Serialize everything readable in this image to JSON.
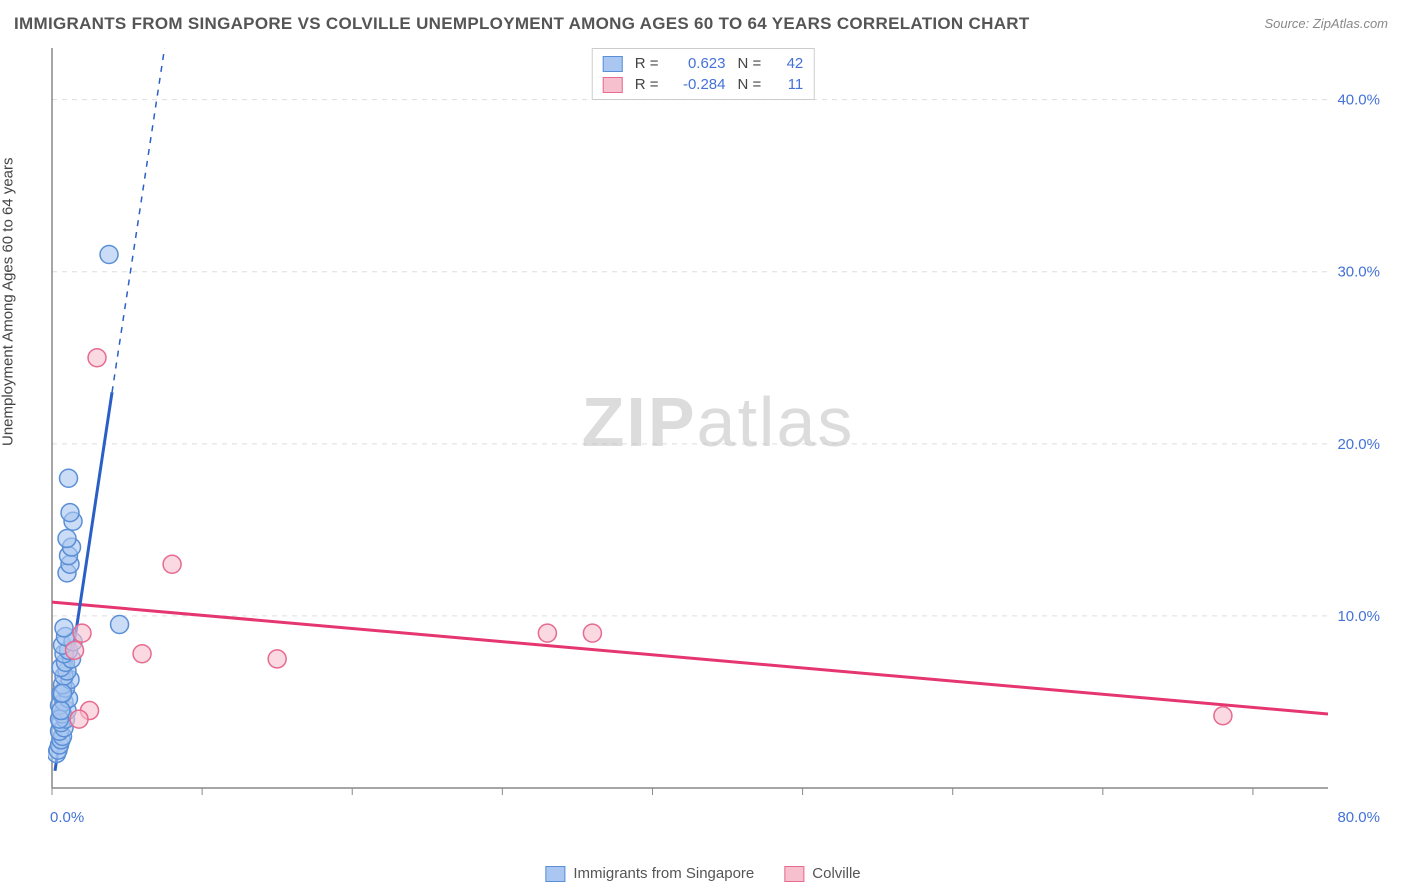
{
  "title": "IMMIGRANTS FROM SINGAPORE VS COLVILLE UNEMPLOYMENT AMONG AGES 60 TO 64 YEARS CORRELATION CHART",
  "source": "Source: ZipAtlas.com",
  "y_axis_label": "Unemployment Among Ages 60 to 64 years",
  "watermark": {
    "bold": "ZIP",
    "rest": "atlas"
  },
  "chart": {
    "type": "scatter",
    "background_color": "#ffffff",
    "grid_color": "#dddddd",
    "axis_color": "#888888",
    "x_range": [
      0,
      85
    ],
    "y_range": [
      0,
      43
    ],
    "x_ticks": [
      0,
      10,
      20,
      30,
      40,
      50,
      60,
      70,
      80
    ],
    "x_tick_labels_shown": {
      "0": "0.0%",
      "80": "80.0%"
    },
    "y_ticks": [
      10,
      20,
      30,
      40
    ],
    "y_tick_labels": {
      "10": "10.0%",
      "20": "20.0%",
      "30": "30.0%",
      "40": "40.0%"
    },
    "tick_label_color": "#4472d8",
    "tick_label_fontsize": 15
  },
  "series": [
    {
      "name": "Immigrants from Singapore",
      "color_fill": "#a9c7f0",
      "color_stroke": "#5a8fd6",
      "r_value": "0.623",
      "n_value": "42",
      "marker_radius": 9,
      "trend": {
        "x1": 0.2,
        "y1": 1.0,
        "x2": 4.0,
        "y2": 23.0,
        "dash_x2": 7.5,
        "dash_y2": 43.0,
        "color": "#2a5fc7",
        "width": 3
      },
      "points": [
        [
          0.3,
          2.0
        ],
        [
          0.4,
          2.2
        ],
        [
          0.5,
          2.5
        ],
        [
          0.6,
          2.8
        ],
        [
          0.7,
          3.0
        ],
        [
          0.5,
          3.3
        ],
        [
          0.8,
          3.5
        ],
        [
          0.6,
          3.8
        ],
        [
          0.9,
          4.0
        ],
        [
          0.7,
          4.3
        ],
        [
          1.0,
          4.5
        ],
        [
          0.5,
          4.8
        ],
        [
          0.8,
          5.0
        ],
        [
          1.1,
          5.2
        ],
        [
          0.6,
          5.5
        ],
        [
          0.9,
          5.8
        ],
        [
          0.7,
          6.0
        ],
        [
          1.2,
          6.3
        ],
        [
          0.8,
          6.5
        ],
        [
          1.0,
          6.8
        ],
        [
          0.6,
          7.0
        ],
        [
          0.9,
          7.3
        ],
        [
          1.3,
          7.5
        ],
        [
          0.8,
          7.8
        ],
        [
          1.1,
          8.0
        ],
        [
          0.7,
          8.3
        ],
        [
          1.4,
          8.5
        ],
        [
          0.9,
          8.8
        ],
        [
          0.8,
          9.3
        ],
        [
          4.5,
          9.5
        ],
        [
          1.0,
          12.5
        ],
        [
          1.2,
          13.0
        ],
        [
          1.1,
          13.5
        ],
        [
          1.3,
          14.0
        ],
        [
          1.0,
          14.5
        ],
        [
          1.4,
          15.5
        ],
        [
          1.2,
          16.0
        ],
        [
          1.1,
          18.0
        ],
        [
          3.8,
          31.0
        ],
        [
          0.5,
          4.0
        ],
        [
          0.6,
          4.5
        ],
        [
          0.7,
          5.5
        ]
      ]
    },
    {
      "name": "Colville",
      "color_fill": "#f7c0cf",
      "color_stroke": "#e76b8f",
      "r_value": "-0.284",
      "n_value": "11",
      "marker_radius": 9,
      "trend": {
        "x1": 0,
        "y1": 10.8,
        "x2": 85,
        "y2": 4.3,
        "color": "#e53670",
        "width": 3
      },
      "points": [
        [
          2.5,
          4.5
        ],
        [
          1.5,
          8.0
        ],
        [
          2.0,
          9.0
        ],
        [
          6.0,
          7.8
        ],
        [
          8.0,
          13.0
        ],
        [
          15.0,
          7.5
        ],
        [
          3.0,
          25.0
        ],
        [
          33.0,
          9.0
        ],
        [
          36.0,
          9.0
        ],
        [
          78.0,
          4.2
        ],
        [
          1.8,
          4.0
        ]
      ]
    }
  ],
  "legend_top": [
    {
      "swatch_fill": "#a9c7f0",
      "swatch_stroke": "#5a8fd6",
      "r": "0.623",
      "n": "42"
    },
    {
      "swatch_fill": "#f7c0cf",
      "swatch_stroke": "#e76b8f",
      "r": "-0.284",
      "n": "11"
    }
  ],
  "legend_bottom": [
    {
      "swatch_fill": "#a9c7f0",
      "swatch_stroke": "#5a8fd6",
      "label": "Immigrants from Singapore"
    },
    {
      "swatch_fill": "#f7c0cf",
      "swatch_stroke": "#e76b8f",
      "label": "Colville"
    }
  ]
}
